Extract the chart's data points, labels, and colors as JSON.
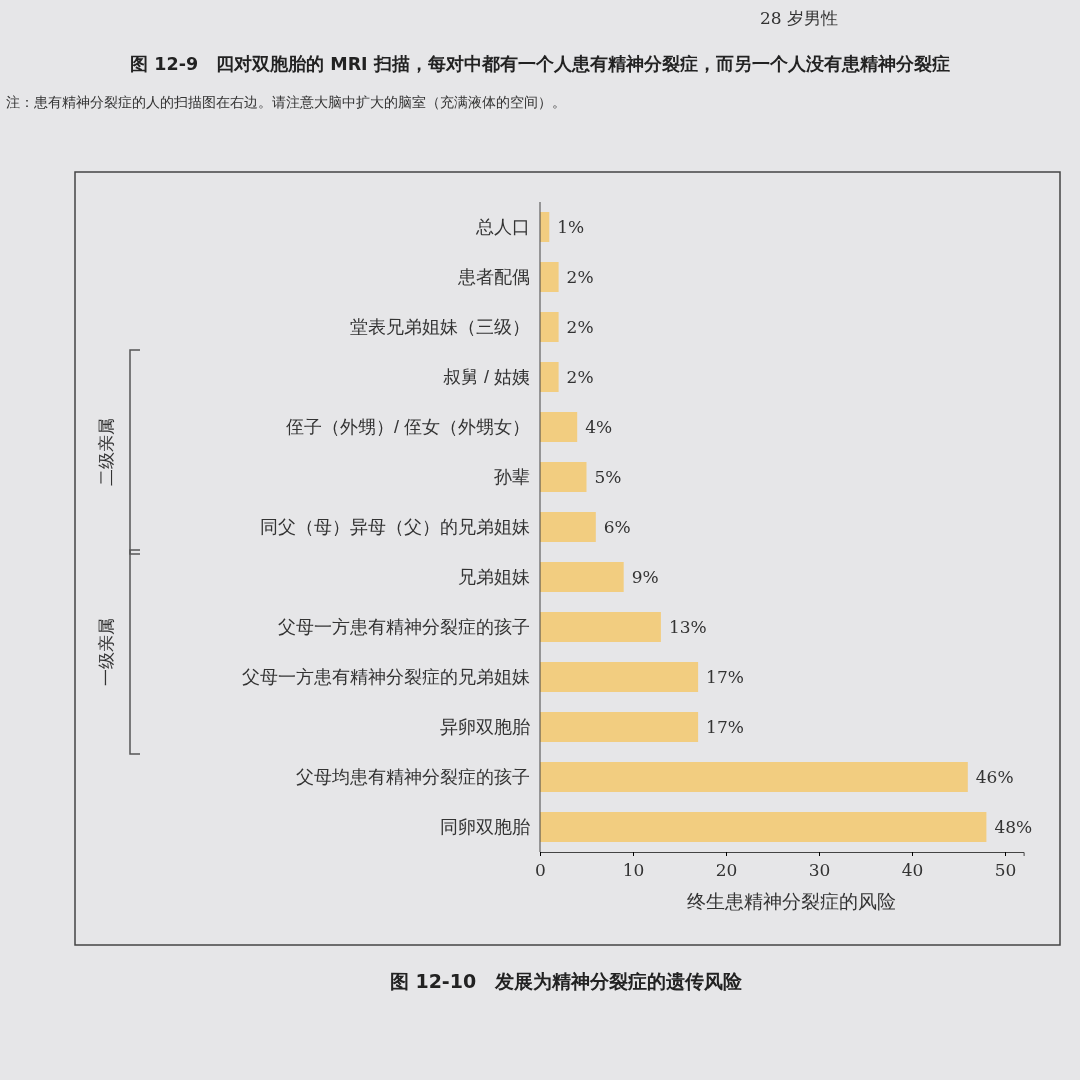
{
  "chart_data": {
    "type": "bar",
    "orientation": "horizontal",
    "title": "图 12-10　发展为精神分裂症的遗传风险",
    "xlabel": "终生患精神分裂症的风险",
    "categories": [
      "总人口",
      "患者配偶",
      "堂表兄弟姐妹（三级）",
      "叔舅 / 姑姨",
      "侄子（外甥）/ 侄女（外甥女）",
      "孙辈",
      "同父（母）异母（父）的兄弟姐妹",
      "兄弟姐妹",
      "父母一方患有精神分裂症的孩子",
      "父母一方患有精神分裂症的兄弟姐妹",
      "异卵双胞胎",
      "父母均患有精神分裂症的孩子",
      "同卵双胞胎"
    ],
    "values": [
      1,
      2,
      2,
      2,
      4,
      5,
      6,
      9,
      13,
      17,
      17,
      46,
      48
    ],
    "value_labels": [
      "1%",
      "2%",
      "2%",
      "2%",
      "4%",
      "5%",
      "6%",
      "9%",
      "13%",
      "17%",
      "17%",
      "46%",
      "48%"
    ],
    "color": "#f2cd80",
    "xlim": [
      0,
      52
    ],
    "xticks": [
      0,
      10,
      20,
      30,
      40,
      50
    ],
    "grid": false,
    "annotations": [
      "28 岁男性",
      "图 12-9　四对双胞胎的 MRI 扫描，每对中都有一个人患有精神分裂症，而另一个人没有患精神分裂症",
      "注：患有精神分裂症的人的扫描图在右边。请注意大脑中扩大的脑室（充满液体的空间）。",
      "二级亲属",
      "一级亲属"
    ]
  }
}
